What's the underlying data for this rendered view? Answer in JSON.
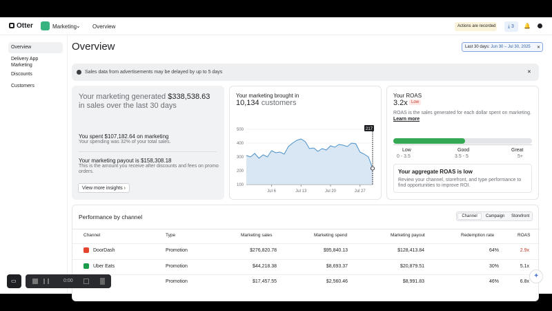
{
  "nav": {
    "brand": "Otter",
    "workspace": "Marketing",
    "page": "Overview",
    "recording": "Actions are recorded",
    "downloads": "3"
  },
  "sidebar": {
    "items": [
      "Overview",
      "Delivery App Marketing",
      "Discounts",
      "Customers"
    ]
  },
  "header": {
    "title": "Overview",
    "date_label": "Last 30 days:",
    "date_range": "Jun 30 – Jul 30, 2025"
  },
  "banner": "Sales data from advertisements may be delayed by up to 5 days",
  "summary": {
    "lead": "Your marketing generated",
    "amount": "$338,538.63",
    "tail": "in sales over the last 30 days",
    "spent_title": "You spent $107,182.64 on marketing",
    "spent_note": "Your spending was 32% of your total sales.",
    "payout_title": "Your marketing payout is $158,308.18",
    "payout_note": "This is the amount you receive after discounts and fees on promo orders.",
    "button": "View more insights"
  },
  "customers": {
    "lead": "Your marketing brought in",
    "count": "10,134",
    "unit": "customers",
    "chart": {
      "type": "area",
      "color": "#4a90c8",
      "categories": [
        null,
        null,
        null,
        null,
        null,
        null,
        "Jul 6",
        null,
        null,
        null,
        null,
        null,
        null,
        "Jul 13",
        null,
        null,
        null,
        null,
        null,
        null,
        "Jul 20",
        null,
        null,
        null,
        null,
        null,
        null,
        "Jul 27",
        null,
        null,
        null
      ],
      "values": [
        310,
        300,
        325,
        290,
        315,
        300,
        345,
        330,
        335,
        320,
        375,
        400,
        420,
        430,
        410,
        360,
        365,
        340,
        360,
        350,
        380,
        370,
        390,
        385,
        375,
        400,
        395,
        335,
        320,
        300,
        217
      ],
      "value_labels": [
        null,
        null,
        null,
        null,
        null,
        null,
        null,
        null,
        null,
        null,
        null,
        null,
        null,
        null,
        null,
        null,
        null,
        null,
        null,
        null,
        null,
        null,
        null,
        null,
        null,
        null,
        null,
        null,
        null,
        null,
        "217"
      ],
      "ylim": [
        100,
        500
      ],
      "yticks": [
        100,
        200,
        300,
        400,
        500
      ]
    }
  },
  "roas": {
    "title": "Your ROAS",
    "value": "3.2x",
    "status": "Low",
    "description": "ROAS is the sales generated for each dollar spent on marketing.",
    "link": "Learn more",
    "levels": [
      {
        "name": "Low",
        "range": "0 - 3.5"
      },
      {
        "name": "Good",
        "range": "3.5 - 5"
      },
      {
        "name": "Great",
        "range": "5+"
      }
    ],
    "advice_title": "Your aggregate ROAS is low",
    "advice": "Review your channel, storefront, and type performance to find opportunities to improve ROI."
  },
  "performance": {
    "title": "Performance by channel",
    "tabs": [
      "Channel",
      "Campaign",
      "Storefront"
    ],
    "columns": [
      "Channel",
      "Type",
      "Marketing sales",
      "Marketing spend",
      "Marketing payout",
      "Redemption rate",
      "ROAS"
    ],
    "rows": [
      {
        "channel": "DoorDash",
        "cells": [
          "Promotion",
          "$276,820.78",
          "$95,840.13",
          "$128,413.84",
          "64%",
          "2.9x"
        ]
      },
      {
        "channel": "Uber Eats",
        "cells": [
          "Promotion",
          "$44,218.38",
          "$8,693.37",
          "$20,879.51",
          "30%",
          "5.1x"
        ]
      },
      {
        "cells": [
          "Promotion",
          "$17,457.55",
          "$2,560.46",
          "$8,991.83",
          "46%",
          "6.8x"
        ]
      }
    ]
  },
  "recorder": {
    "time": "0:00"
  }
}
